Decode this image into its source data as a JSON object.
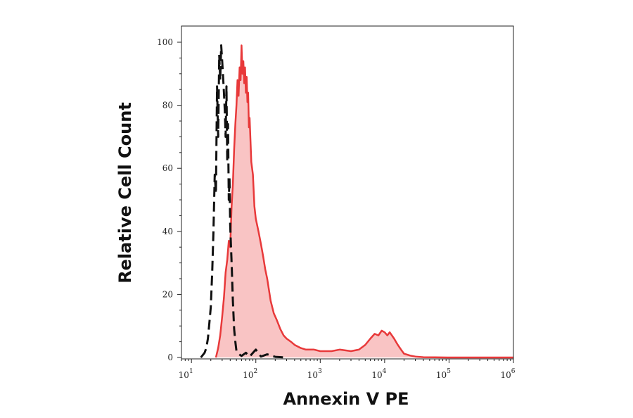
{
  "chart_data": {
    "type": "area",
    "title": "",
    "xlabel": "Annexin V PE",
    "ylabel": "Relative Cell Count",
    "x_scale": "log",
    "xlim": [
      7,
      1000000
    ],
    "ylim": [
      0,
      103
    ],
    "x_ticks": [
      {
        "value": 10,
        "base": "10",
        "exp": "1"
      },
      {
        "value": 100,
        "base": "10",
        "exp": "2"
      },
      {
        "value": 1000,
        "base": "10",
        "exp": "3"
      },
      {
        "value": 10000,
        "base": "10",
        "exp": "4"
      },
      {
        "value": 100000,
        "base": "10",
        "exp": "5"
      },
      {
        "value": 1000000,
        "base": "10",
        "exp": "6"
      }
    ],
    "y_ticks": [
      {
        "value": 0,
        "label": "0"
      },
      {
        "value": 20,
        "label": "20"
      },
      {
        "value": 40,
        "label": "40"
      },
      {
        "value": 60,
        "label": "60"
      },
      {
        "value": 80,
        "label": "80"
      },
      {
        "value": 100,
        "label": "100"
      }
    ],
    "grid": false,
    "series": [
      {
        "style": "dashed",
        "color": "#111111",
        "x": [
          14,
          16,
          17,
          18,
          19,
          20,
          21,
          22,
          23,
          24,
          25,
          26,
          27,
          28,
          29,
          30,
          31,
          32,
          33,
          34,
          35,
          36,
          37,
          38,
          39,
          40,
          42,
          44,
          46,
          48,
          50,
          55,
          60,
          70,
          80,
          100,
          120,
          150,
          200,
          300
        ],
        "y": [
          0,
          1.5,
          3,
          6,
          11,
          16,
          27,
          40,
          58,
          52,
          86,
          70,
          96,
          88,
          99,
          94,
          89,
          84,
          78,
          70,
          86,
          62,
          74,
          50,
          57,
          42,
          30,
          18,
          9,
          5,
          2,
          1,
          0.5,
          1.5,
          0.3,
          2.5,
          0.3,
          1,
          0.2,
          0
        ]
      },
      {
        "style": "filled",
        "color": "#e8393a",
        "fill": "#f9c4c4",
        "x": [
          24,
          26,
          28,
          30,
          32,
          34,
          36,
          38,
          40,
          42,
          44,
          46,
          48,
          50,
          52,
          54,
          56,
          58,
          60,
          62,
          64,
          66,
          68,
          70,
          72,
          74,
          76,
          78,
          80,
          85,
          90,
          95,
          100,
          110,
          120,
          130,
          140,
          150,
          170,
          190,
          210,
          240,
          270,
          300,
          350,
          400,
          500,
          600,
          800,
          1000,
          1500,
          2000,
          3000,
          4000,
          5000,
          6000,
          7000,
          8000,
          9000,
          10000,
          11000,
          12000,
          14000,
          16000,
          18000,
          20000,
          25000,
          30000,
          40000,
          60000,
          100000,
          1000000
        ],
        "y": [
          0,
          3,
          7,
          13,
          19,
          27,
          31,
          37,
          35,
          48,
          55,
          66,
          74,
          80,
          88,
          83,
          92,
          88,
          99,
          90,
          94,
          87,
          92,
          84,
          89,
          81,
          84,
          73,
          76,
          62,
          58,
          48,
          44,
          40,
          36,
          32,
          28,
          25,
          18,
          14,
          12,
          9,
          7,
          6,
          5,
          4,
          3,
          2.5,
          2.5,
          2,
          2,
          2.5,
          2,
          2.5,
          4,
          6,
          7.5,
          7,
          8.5,
          8,
          7,
          8,
          6,
          4,
          2.5,
          1.2,
          0.6,
          0.3,
          0.1,
          0.05,
          0,
          0
        ]
      }
    ]
  }
}
